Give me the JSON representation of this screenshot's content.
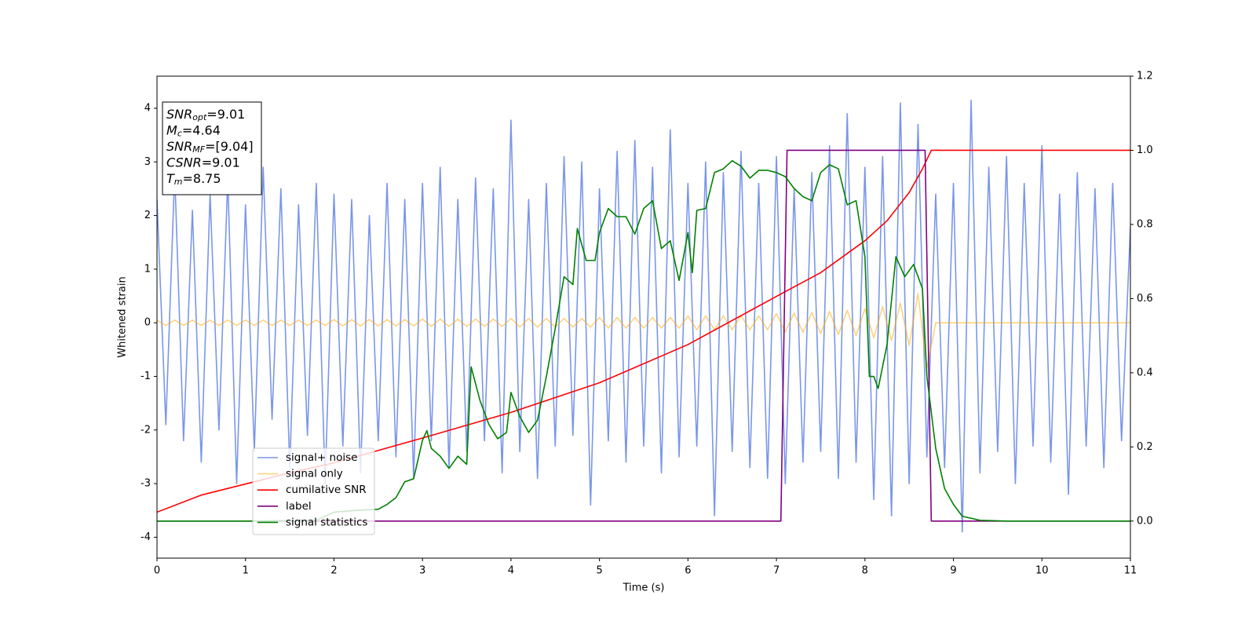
{
  "chart_data": {
    "type": "line",
    "xlabel": "Time (s)",
    "ylabel": "Whitened strain",
    "x": [
      0,
      0.1,
      0.2,
      0.3,
      0.4,
      0.5,
      0.6,
      0.7,
      0.8,
      0.9,
      1,
      1.1,
      1.2,
      1.3,
      1.4,
      1.5,
      1.6,
      1.7,
      1.8,
      1.9,
      2,
      2.1,
      2.2,
      2.3,
      2.4,
      2.5,
      2.6,
      2.7,
      2.8,
      2.9,
      3,
      3.1,
      3.2,
      3.3,
      3.4,
      3.5,
      3.6,
      3.7,
      3.8,
      3.9,
      4,
      4.1,
      4.2,
      4.3,
      4.4,
      4.5,
      4.6,
      4.7,
      4.8,
      4.9,
      5,
      5.1,
      5.2,
      5.3,
      5.4,
      5.5,
      5.6,
      5.7,
      5.8,
      5.9,
      6,
      6.1,
      6.2,
      6.3,
      6.4,
      6.5,
      6.6,
      6.7,
      6.8,
      6.9,
      7,
      7.1,
      7.2,
      7.3,
      7.4,
      7.5,
      7.6,
      7.7,
      7.8,
      7.9,
      8,
      8.1,
      8.2,
      8.3,
      8.4,
      8.5,
      8.6,
      8.7,
      8.8,
      8.9,
      9,
      9.1,
      9.2,
      9.3,
      9.4,
      9.5,
      9.6,
      9.7,
      9.8,
      9.9,
      10,
      10.1,
      10.2,
      10.3,
      10.4,
      10.5,
      10.6,
      10.7,
      10.8,
      10.9,
      11
    ],
    "series": [
      {
        "name": "signal+ noise",
        "color": "#4169e1",
        "alpha": 0.7,
        "values": [
          2.3,
          -1.9,
          2.8,
          -2.2,
          2.1,
          -2.6,
          2.4,
          -2.0,
          2.7,
          -3.0,
          2.2,
          -2.4,
          2.9,
          -1.8,
          2.5,
          -2.7,
          2.2,
          -2.1,
          2.6,
          -3.0,
          2.4,
          -2.3,
          2.3,
          -2.8,
          2.0,
          -2.2,
          2.6,
          -2.5,
          2.3,
          -2.9,
          2.6,
          -2.2,
          2.9,
          -2.7,
          2.3,
          -2.4,
          2.7,
          -2.2,
          2.5,
          -2.8,
          3.78,
          -2.4,
          2.3,
          -2.9,
          2.6,
          -2.3,
          3.1,
          -2.1,
          3.0,
          -3.4,
          2.5,
          -2.2,
          3.2,
          -2.6,
          3.4,
          -2.3,
          2.9,
          -2.8,
          3.6,
          -2.5,
          2.6,
          -2.3,
          3.0,
          -3.6,
          2.8,
          -2.4,
          3.2,
          -2.7,
          2.6,
          -2.9,
          3.1,
          -3.0,
          2.5,
          -2.6,
          2.8,
          -2.4,
          3.3,
          -2.9,
          3.9,
          -2.6,
          2.9,
          -3.3,
          3.1,
          -3.6,
          4.1,
          -3.0,
          3.7,
          -2.5,
          2.4,
          -2.7,
          2.6,
          -3.9,
          4.15,
          -2.8,
          2.9,
          -2.4,
          3.1,
          -3.0,
          2.6,
          -2.3,
          3.3,
          -2.6,
          2.4,
          -3.2,
          2.8,
          -2.3,
          2.5,
          -2.7,
          2.6,
          -2.2,
          1.8
        ]
      },
      {
        "name": "signal only",
        "color": "#ffa500",
        "alpha": 0.5,
        "values": [
          0.05,
          -0.05,
          0.05,
          -0.05,
          0.05,
          -0.05,
          0.05,
          -0.05,
          0.05,
          -0.05,
          0.05,
          -0.05,
          0.05,
          -0.05,
          0.05,
          -0.05,
          0.05,
          -0.05,
          0.05,
          -0.05,
          0.06,
          -0.06,
          0.06,
          -0.06,
          0.06,
          -0.06,
          0.06,
          -0.06,
          0.06,
          -0.06,
          0.07,
          -0.07,
          0.07,
          -0.07,
          0.07,
          -0.07,
          0.07,
          -0.07,
          0.07,
          -0.07,
          0.08,
          -0.08,
          0.08,
          -0.08,
          0.08,
          -0.08,
          0.08,
          -0.08,
          0.08,
          -0.08,
          0.1,
          -0.1,
          0.1,
          -0.1,
          0.1,
          -0.1,
          0.1,
          -0.1,
          0.1,
          -0.1,
          0.13,
          -0.13,
          0.13,
          -0.13,
          0.13,
          -0.13,
          0.13,
          -0.13,
          0.13,
          -0.13,
          0.17,
          -0.17,
          0.18,
          -0.18,
          0.19,
          -0.2,
          0.21,
          -0.22,
          0.23,
          -0.24,
          0.26,
          -0.28,
          0.3,
          -0.33,
          0.37,
          -0.42,
          0.55,
          -0.85,
          0,
          0,
          0,
          0,
          0,
          0,
          0,
          0,
          0,
          0,
          0,
          0,
          0,
          0,
          0,
          0,
          0,
          0,
          0,
          0,
          0,
          0,
          0
        ]
      },
      {
        "name": "cumilative SNR",
        "color": "#ff0000",
        "axis": "y2",
        "x": [
          0,
          0.5,
          1,
          1.5,
          2,
          3,
          4,
          5,
          6,
          7,
          7.5,
          8,
          8.25,
          8.5,
          8.65,
          8.75,
          9,
          10,
          11
        ],
        "values": [
          0.024,
          0.07,
          0.1,
          0.13,
          0.157,
          0.224,
          0.293,
          0.373,
          0.476,
          0.606,
          0.67,
          0.756,
          0.81,
          0.886,
          0.95,
          1.0,
          1.0,
          1.0,
          1.0
        ]
      },
      {
        "name": "label",
        "color": "#800080",
        "axis": "y2",
        "x": [
          0,
          7.05,
          7.12,
          8.68,
          8.75,
          11
        ],
        "values": [
          0,
          0,
          1,
          1,
          0,
          0
        ]
      },
      {
        "name": "signal statistics",
        "color": "#008000",
        "axis": "y2",
        "x": [
          0,
          1,
          1.8,
          2.0,
          2.2,
          2.5,
          2.6,
          2.7,
          2.8,
          2.9,
          3.0,
          3.05,
          3.1,
          3.2,
          3.3,
          3.4,
          3.5,
          3.55,
          3.65,
          3.75,
          3.85,
          3.95,
          4.0,
          4.1,
          4.2,
          4.3,
          4.4,
          4.5,
          4.6,
          4.7,
          4.75,
          4.85,
          4.95,
          5.0,
          5.1,
          5.2,
          5.3,
          5.4,
          5.5,
          5.6,
          5.7,
          5.8,
          5.9,
          6.0,
          6.05,
          6.1,
          6.2,
          6.3,
          6.4,
          6.5,
          6.6,
          6.7,
          6.8,
          6.9,
          7.0,
          7.1,
          7.2,
          7.3,
          7.4,
          7.5,
          7.6,
          7.7,
          7.8,
          7.9,
          8.0,
          8.05,
          8.1,
          8.15,
          8.25,
          8.35,
          8.45,
          8.55,
          8.65,
          8.7,
          8.8,
          8.9,
          9.0,
          9.1,
          9.3,
          9.6,
          11
        ],
        "values": [
          0,
          0,
          0.002,
          0.024,
          0.028,
          0.032,
          0.045,
          0.063,
          0.106,
          0.114,
          0.218,
          0.244,
          0.196,
          0.175,
          0.142,
          0.175,
          0.153,
          0.416,
          0.325,
          0.261,
          0.222,
          0.239,
          0.347,
          0.282,
          0.239,
          0.272,
          0.39,
          0.519,
          0.659,
          0.638,
          0.789,
          0.703,
          0.703,
          0.778,
          0.843,
          0.821,
          0.821,
          0.774,
          0.843,
          0.864,
          0.735,
          0.756,
          0.649,
          0.778,
          0.67,
          0.838,
          0.843,
          0.94,
          0.95,
          0.972,
          0.957,
          0.925,
          0.946,
          0.946,
          0.94,
          0.929,
          0.897,
          0.875,
          0.864,
          0.94,
          0.961,
          0.95,
          0.853,
          0.864,
          0.713,
          0.39,
          0.39,
          0.358,
          0.476,
          0.713,
          0.659,
          0.692,
          0.627,
          0.39,
          0.196,
          0.088,
          0.045,
          0.013,
          0.002,
          0,
          0
        ]
      }
    ],
    "xlim": [
      0,
      11
    ],
    "xticks": [
      0,
      1,
      2,
      3,
      4,
      5,
      6,
      7,
      8,
      9,
      10,
      11
    ],
    "ylim": [
      -4.39,
      4.6
    ],
    "yticks": [
      -4,
      -3,
      -2,
      -1,
      0,
      1,
      2,
      3,
      4
    ],
    "y2lim": [
      -0.1,
      1.2
    ],
    "y2ticks": [
      {
        "value": 0,
        "label": "0.0"
      },
      {
        "value": 0.2,
        "label": "0.2"
      },
      {
        "value": 0.4,
        "label": "0.4"
      },
      {
        "value": 0.6,
        "label": "0.6"
      },
      {
        "value": 0.8,
        "label": "0.8"
      },
      {
        "value": 1.0,
        "label": "1.0"
      },
      {
        "value": 1.2,
        "label": "1.2"
      }
    ],
    "legend_loc": "lower left",
    "annotation": [
      {
        "symbol": "SNR",
        "subscript": "opt",
        "text": "=9.01"
      },
      {
        "symbol": "M",
        "subscript": "c",
        "text": "=4.64"
      },
      {
        "symbol": "SNR",
        "subscript": "MF",
        "text": "=[9.04]"
      },
      {
        "symbol": "CSNR",
        "text": "=9.01"
      },
      {
        "symbol": "T",
        "subscript": "m",
        "text": "=8.75"
      }
    ]
  }
}
